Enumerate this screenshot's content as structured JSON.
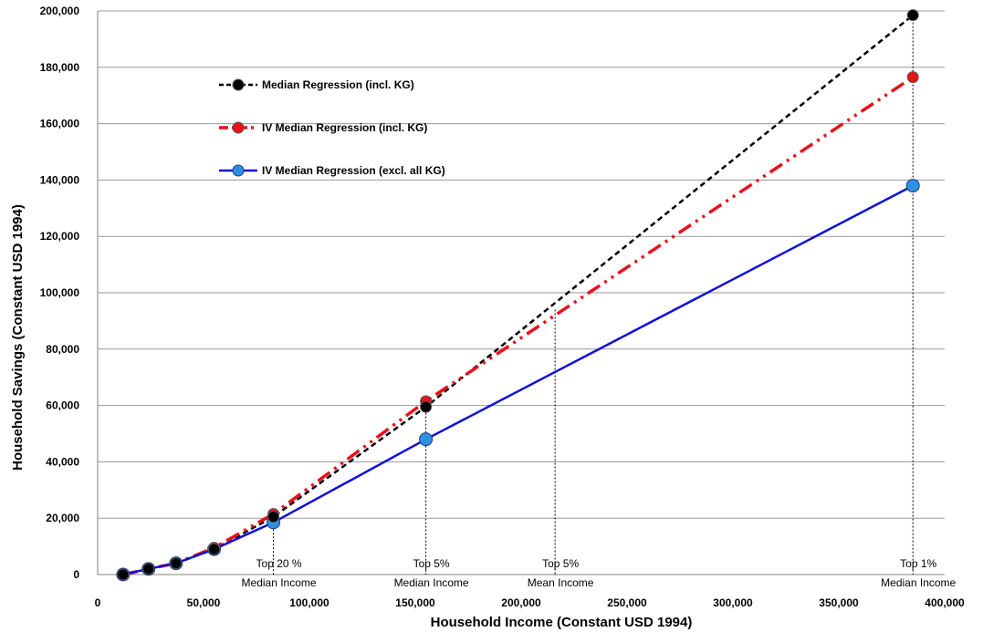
{
  "chart_data": {
    "type": "line",
    "title": "",
    "xlabel": "Household Income  (Constant USD 1994)",
    "ylabel": "Household Savings (Constant USD 1994)",
    "xlim": [
      0,
      400000
    ],
    "ylim": [
      0,
      200000
    ],
    "x_ticks": [
      0,
      50000,
      100000,
      150000,
      200000,
      250000,
      300000,
      350000,
      400000
    ],
    "x_tick_labels": [
      "0",
      "50,000",
      "100,000",
      "150,000",
      "200,000",
      "250,000",
      "300,000",
      "350,000",
      "400,000"
    ],
    "y_ticks": [
      0,
      20000,
      40000,
      60000,
      80000,
      100000,
      120000,
      140000,
      160000,
      180000,
      200000
    ],
    "y_tick_labels": [
      "0",
      "20,000",
      "40,000",
      "60,000",
      "80,000",
      "100,000",
      "120,000",
      "140,000",
      "160,000",
      "180,000",
      "200,000"
    ],
    "grid": "horizontal",
    "legend_position": "top-left",
    "series": [
      {
        "name": "Median Regression (incl. KG)",
        "color": "#000000",
        "style": "dashed",
        "x": [
          12000,
          24000,
          37000,
          55000,
          83000,
          155000,
          385000
        ],
        "y": [
          0,
          2000,
          4000,
          9000,
          20500,
          59500,
          198500
        ]
      },
      {
        "name": "IV Median Regression (incl. KG)",
        "color": "#e8121b",
        "style": "dash-dot-dot",
        "x": [
          12000,
          24000,
          37000,
          55000,
          83000,
          155000,
          385000
        ],
        "y": [
          0,
          2000,
          4000,
          9500,
          21500,
          61500,
          176500
        ]
      },
      {
        "name": "IV Median Regression (excl. all KG)",
        "color": "#1010d8",
        "style": "solid",
        "x": [
          12000,
          24000,
          37000,
          55000,
          83000,
          155000,
          385000
        ],
        "y": [
          0,
          2000,
          4000,
          9000,
          18500,
          48000,
          138000
        ]
      }
    ],
    "annotations": [
      {
        "line1": "Top 20 %",
        "line2": "Median Income",
        "x": 83000,
        "line_top": 20000
      },
      {
        "line1": "Top 5%",
        "line2": "Median Income",
        "x": 155000,
        "line_top": 60000
      },
      {
        "line1": "Top 5%",
        "line2": "Mean Income",
        "x": 216000,
        "line_top": 94000
      },
      {
        "line1": "Top 1%",
        "line2": "Median Income",
        "x": 385000,
        "line_top": 198500
      }
    ]
  }
}
